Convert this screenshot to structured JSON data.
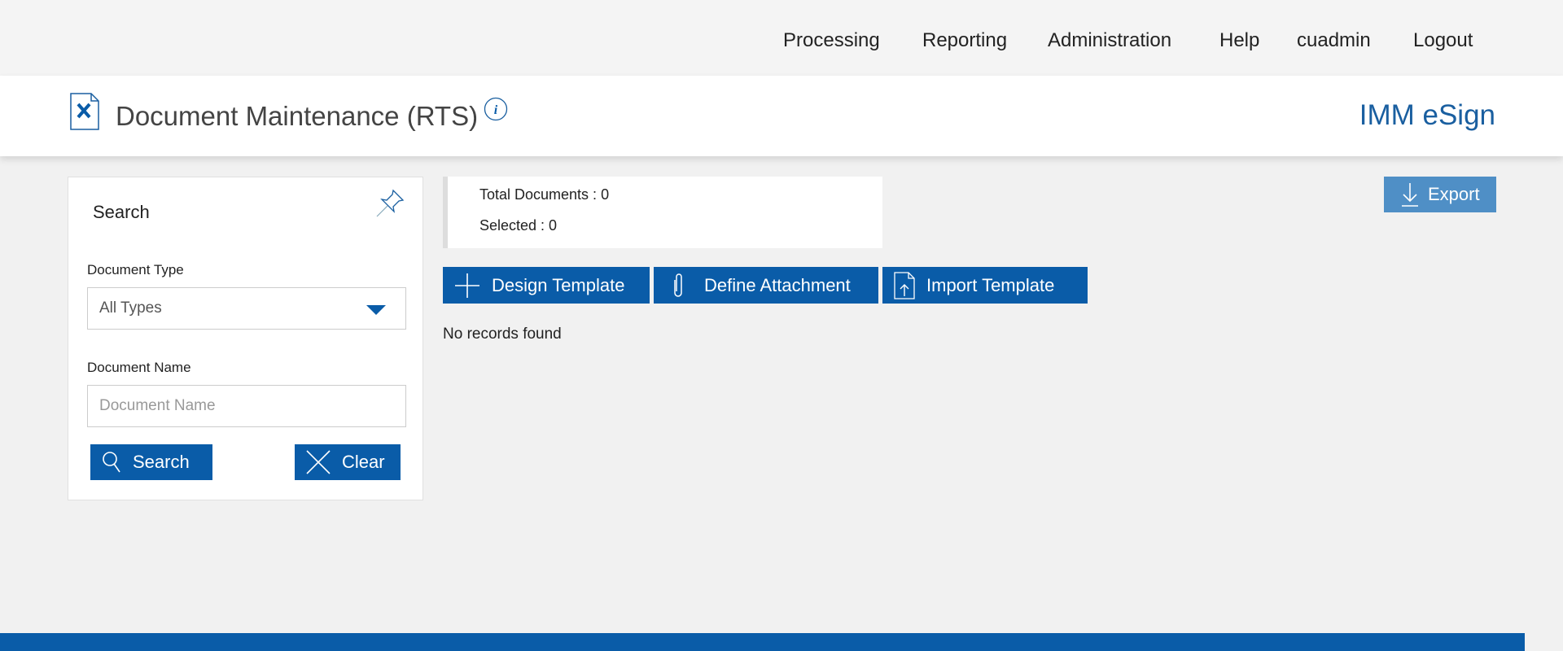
{
  "topnav": {
    "items": [
      "Processing",
      "Reporting",
      "Administration",
      "Help",
      "cuadmin",
      "Logout"
    ]
  },
  "header": {
    "title": "Document Maintenance (RTS)",
    "brand": "IMM eSign",
    "icon": "document-tools-icon",
    "info_icon": "info-icon"
  },
  "search_panel": {
    "title": "Search",
    "document_type_label": "Document Type",
    "document_type_value": "All Types",
    "document_name_label": "Document Name",
    "document_name_placeholder": "Document Name",
    "document_name_value": "",
    "search_label": "Search",
    "clear_label": "Clear"
  },
  "totals": {
    "total_documents": "Total Documents : 0",
    "selected": "Selected : 0"
  },
  "actions": {
    "design_template": "Design Template",
    "define_attachment": "Define Attachment",
    "import_template": "Import Template",
    "export": "Export"
  },
  "main": {
    "empty_message": "No records found"
  },
  "colors": {
    "primary": "#0a5ca8",
    "export": "#4f8fc6",
    "brand": "#1a5fa0"
  }
}
